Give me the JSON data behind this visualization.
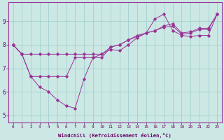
{
  "xlabel": "Windchill (Refroidissement éolien,°C)",
  "bg_color": "#cce8e4",
  "line_color": "#993399",
  "grid_color": "#99cccc",
  "axis_color": "#993399",
  "text_color": "#660066",
  "xlim": [
    -0.5,
    23.5
  ],
  "ylim": [
    4.7,
    9.8
  ],
  "xticks": [
    0,
    1,
    2,
    3,
    4,
    5,
    6,
    7,
    8,
    9,
    10,
    11,
    12,
    13,
    14,
    15,
    16,
    17,
    18,
    19,
    20,
    21,
    22,
    23
  ],
  "yticks": [
    5,
    6,
    7,
    8,
    9
  ],
  "series1": [
    8.0,
    7.6,
    7.6,
    7.6,
    7.6,
    7.6,
    7.6,
    7.6,
    7.6,
    7.6,
    7.6,
    7.9,
    8.0,
    8.2,
    8.4,
    8.5,
    8.6,
    8.75,
    8.8,
    8.45,
    8.5,
    8.65,
    8.65,
    9.3
  ],
  "series2": [
    8.0,
    7.6,
    6.65,
    6.2,
    6.0,
    5.65,
    5.4,
    5.3,
    6.55,
    7.45,
    7.6,
    7.8,
    7.75,
    8.0,
    8.3,
    8.5,
    9.1,
    9.3,
    8.6,
    8.4,
    8.35,
    8.4,
    8.4,
    9.3
  ],
  "series3": [
    8.0,
    7.6,
    6.65,
    6.65,
    6.65,
    6.65,
    6.65,
    7.45,
    7.45,
    7.45,
    7.45,
    7.9,
    8.0,
    8.2,
    8.35,
    8.5,
    8.6,
    8.8,
    8.9,
    8.5,
    8.55,
    8.7,
    8.7,
    9.3
  ]
}
